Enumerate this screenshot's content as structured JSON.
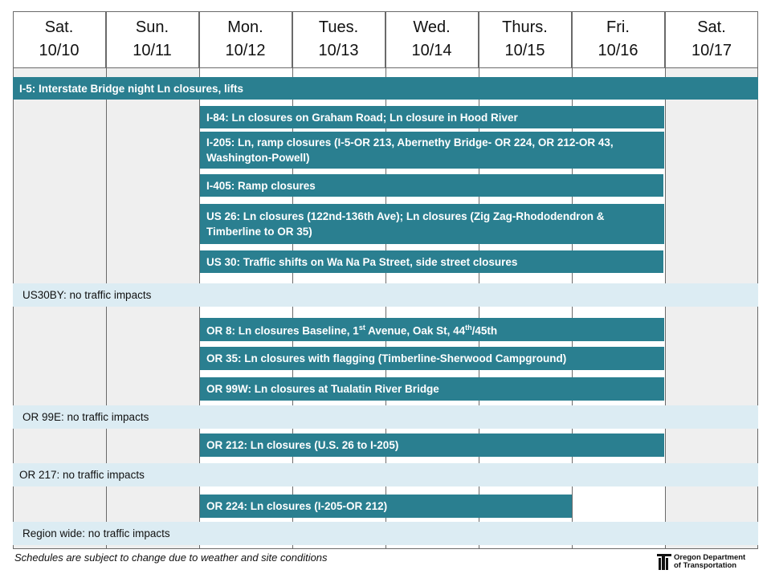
{
  "days": [
    {
      "day": "Sat.",
      "date": "10/10"
    },
    {
      "day": "Sun.",
      "date": "10/11"
    },
    {
      "day": "Mon.",
      "date": "10/12"
    },
    {
      "day": "Tues.",
      "date": "10/13"
    },
    {
      "day": "Wed.",
      "date": "10/14"
    },
    {
      "day": "Thurs.",
      "date": "10/15"
    },
    {
      "day": "Fri.",
      "date": "10/16"
    },
    {
      "day": "Sat.",
      "date": "10/17"
    }
  ],
  "rows": {
    "i5": "I-5: Interstate Bridge night Ln closures, lifts",
    "i84": "I-84: Ln closures on Graham Road; Ln closure in Hood River",
    "i205": "I-205: Ln, ramp closures (I-5-OR 213, Abernethy Bridge- OR 224, OR 212-OR 43, Washington-Powell)",
    "i405": "I-405: Ramp closures",
    "us26": "US 26: Ln closures (122nd-136th Ave); Ln closures (Zig Zag-Rhododendron & Timberline to OR 35)",
    "us30": "US 30: Traffic shifts on Wa Na Pa Street, side street closures",
    "us30by": "US30BY: no traffic impacts",
    "or8": {
      "pre": "OR 8: Ln closures Baseline, 1",
      "sup1": "st",
      "mid": " Avenue, Oak St, 44",
      "sup2": "th",
      "post": "/45th"
    },
    "or35": "OR 35: Ln closures with flagging (Timberline-Sherwood Campground)",
    "or99w": "OR 99W: Ln closures at Tualatin River Bridge",
    "or99e": "OR 99E: no traffic impacts",
    "or212": "OR 212: Ln closures (U.S. 26 to I-205)",
    "or217": "OR 217: no traffic impacts",
    "or224": "OR 224: Ln closures (I-205-OR 212)",
    "region": "Region wide: no traffic impacts"
  },
  "footer": {
    "note": "Schedules are subject to change due to weather and site conditions",
    "logo_line1": "Oregon Department",
    "logo_line2": "of Transportation"
  },
  "colors": {
    "bar": "#2a7f90",
    "no_impact": "#dcecf3",
    "cell_bg": "#efefef",
    "grid_line": "#6a6a6a"
  }
}
